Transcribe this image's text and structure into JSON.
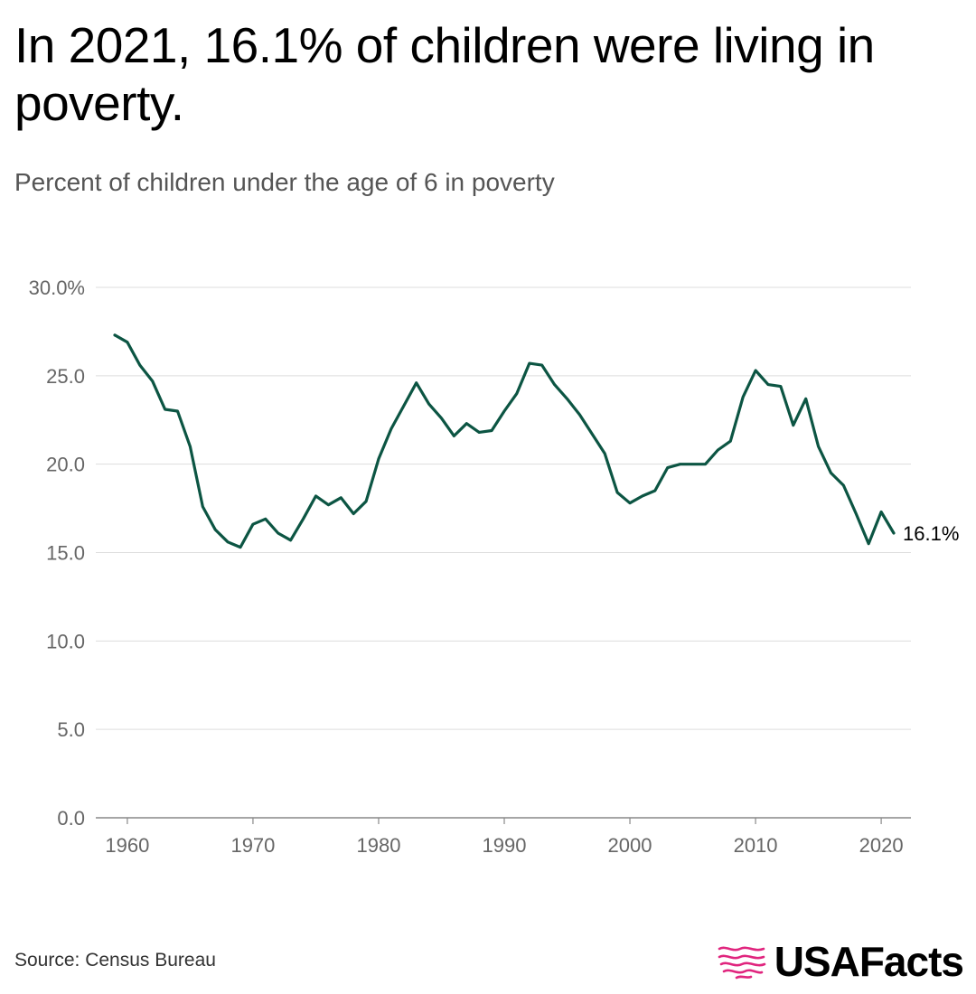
{
  "title": "In 2021, 16.1% of children were living in poverty.",
  "subtitle": "Percent of children under the age of 6 in poverty",
  "source": "Source: Census Bureau",
  "brand": "USAFacts",
  "colors": {
    "line": "#0c5543",
    "grid": "#dddddd",
    "logo": "#e0257e"
  },
  "chart_data": {
    "type": "line",
    "title": "In 2021, 16.1% of children were living in poverty.",
    "subtitle": "Percent of children under the age of 6 in poverty",
    "xlabel": "",
    "ylabel": "",
    "xlim": [
      1959,
      2021
    ],
    "ylim": [
      0,
      30
    ],
    "grid": true,
    "x_ticks": [
      1960,
      1970,
      1980,
      1990,
      2000,
      2010,
      2020
    ],
    "y_ticks": [
      {
        "value": 30,
        "label": "30.0%"
      },
      {
        "value": 25,
        "label": "25.0"
      },
      {
        "value": 20,
        "label": "20.0"
      },
      {
        "value": 15,
        "label": "15.0"
      },
      {
        "value": 10,
        "label": "10.0"
      },
      {
        "value": 5,
        "label": "5.0"
      },
      {
        "value": 0,
        "label": "0.0"
      }
    ],
    "end_label": "16.1%",
    "series": [
      {
        "name": "Percent of children under 6 in poverty",
        "x": [
          1959,
          1960,
          1961,
          1962,
          1963,
          1964,
          1965,
          1966,
          1967,
          1968,
          1969,
          1970,
          1971,
          1972,
          1973,
          1974,
          1975,
          1976,
          1977,
          1978,
          1979,
          1980,
          1981,
          1982,
          1983,
          1984,
          1985,
          1986,
          1987,
          1988,
          1989,
          1990,
          1991,
          1992,
          1993,
          1994,
          1995,
          1996,
          1997,
          1998,
          1999,
          2000,
          2001,
          2002,
          2003,
          2004,
          2005,
          2006,
          2007,
          2008,
          2009,
          2010,
          2011,
          2012,
          2013,
          2014,
          2015,
          2016,
          2017,
          2018,
          2019,
          2020,
          2021
        ],
        "values": [
          27.3,
          26.9,
          25.6,
          24.7,
          23.1,
          23.0,
          21.0,
          17.6,
          16.3,
          15.6,
          15.3,
          16.6,
          16.9,
          16.1,
          15.7,
          16.9,
          18.2,
          17.7,
          18.1,
          17.2,
          17.9,
          20.3,
          22.0,
          23.3,
          24.6,
          23.4,
          22.6,
          21.6,
          22.3,
          21.8,
          21.9,
          23.0,
          24.0,
          25.7,
          25.6,
          24.5,
          23.7,
          22.8,
          21.7,
          20.6,
          18.4,
          17.8,
          18.2,
          18.5,
          19.8,
          20.0,
          20.0,
          20.0,
          20.8,
          21.3,
          23.8,
          25.3,
          24.5,
          24.4,
          22.2,
          23.7,
          21.0,
          19.5,
          18.8,
          17.2,
          15.5,
          17.3,
          16.1
        ]
      }
    ]
  }
}
